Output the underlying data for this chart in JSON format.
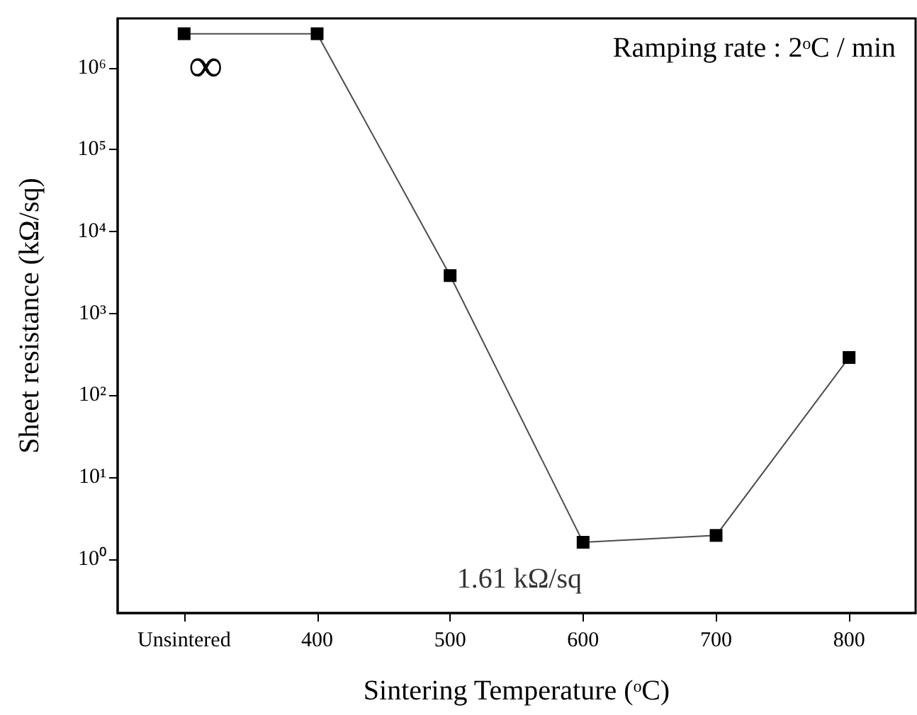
{
  "chart_data": {
    "type": "line",
    "xlabel": "Sintering Temperature (ᵒC)",
    "ylabel": "Sheet resistance (kΩ/sq)",
    "categories": [
      "Unsintered",
      "400",
      "500",
      "600",
      "700",
      "800"
    ],
    "series": [
      {
        "color": "#000000",
        "values": [
          2600000,
          2600000,
          2900,
          1.61,
          1.95,
          290
        ]
      }
    ],
    "log": "y",
    "ylim": [
      0.22,
      4000000
    ],
    "yticks": [
      {
        "value": 1,
        "label": "10⁰"
      },
      {
        "value": 10,
        "label": "10¹"
      },
      {
        "value": 100,
        "label": "10²"
      },
      {
        "value": 1000,
        "label": "10³"
      },
      {
        "value": 10000,
        "label": "10⁴"
      },
      {
        "value": 100000,
        "label": "10⁵"
      },
      {
        "value": 1000000,
        "label": "10⁶"
      }
    ],
    "marker": "square",
    "line_style": "solid",
    "grid": false,
    "annotations": [
      "Ramping rate : 2ᵒC / min",
      "∞",
      {
        "text": "1.61 kΩ/sq",
        "x": "600",
        "y": 1.61
      }
    ]
  }
}
